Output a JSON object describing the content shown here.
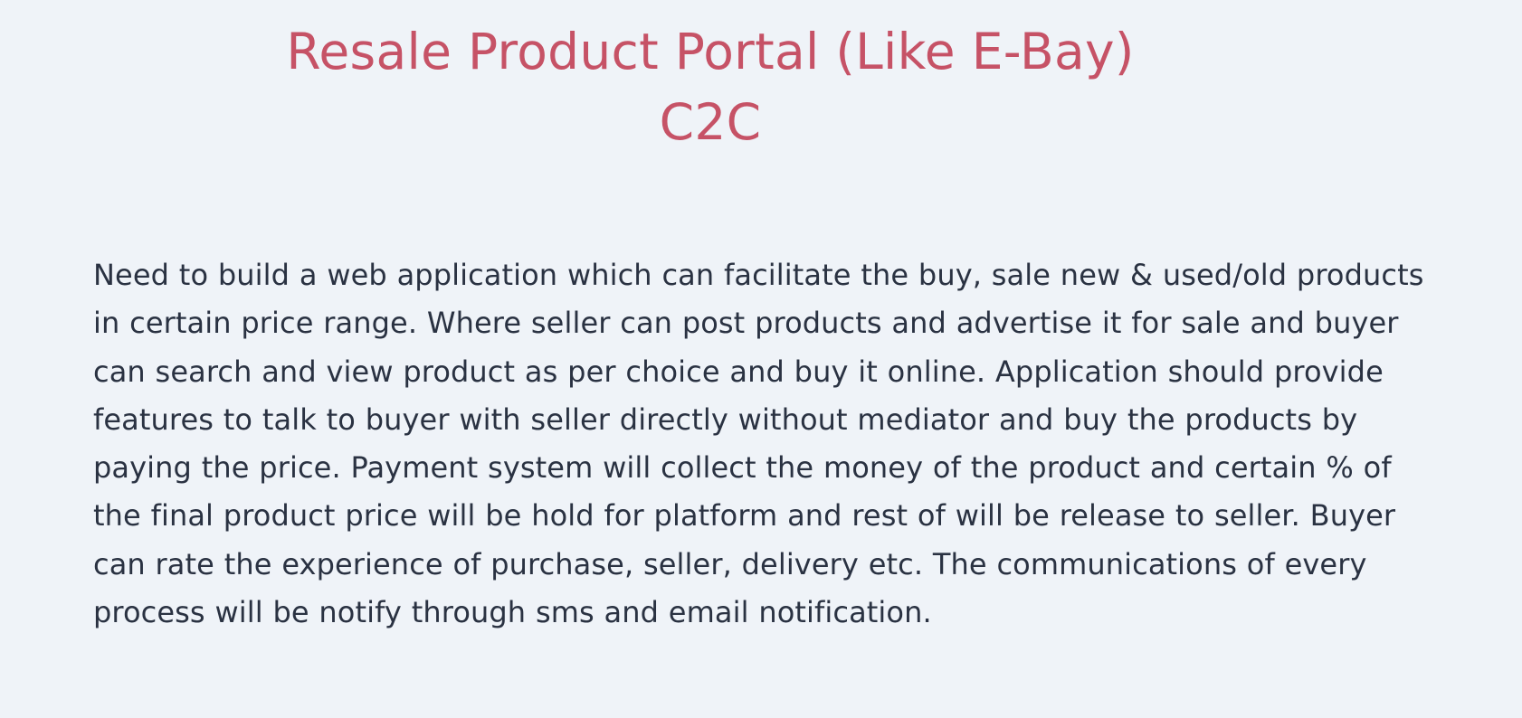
{
  "document": {
    "title_line_1": "Resale Product Portal (Like E-Bay)",
    "title_line_2": "C2C",
    "description": "Need to build a web application which can facilitate the buy, sale new & used/old products in certain price range. Where seller can post products and advertise it for sale and buyer can search and view product as per choice and buy it online. Application should provide features to talk to buyer with seller directly without mediator and buy the products by paying the price. Payment system will collect the money of the product and certain % of the final product price will be hold for platform and rest of will be release to seller. Buyer can rate the experience of purchase, seller, delivery etc. The communications of every process will be notify through sms and email notification.",
    "colors": {
      "background": "#eff3f8",
      "title": "#c65266",
      "body_text": "#2a3242"
    }
  }
}
